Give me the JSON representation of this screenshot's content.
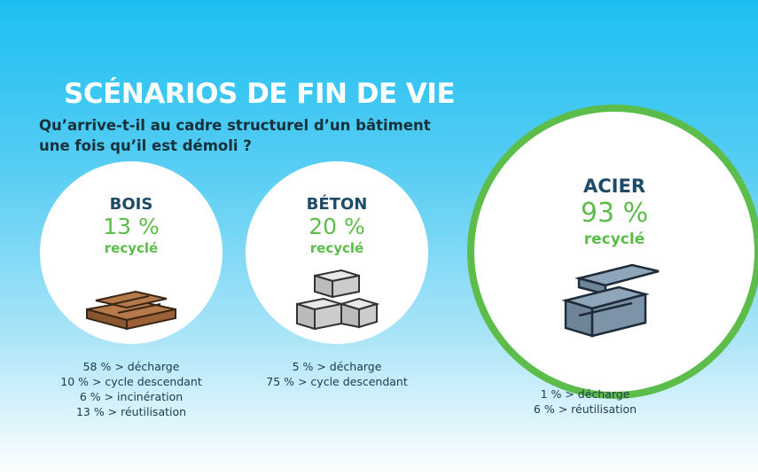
{
  "title": "SCÉNARIOS DE FIN DE VIE",
  "subtitle": "Qu’arrive-t-il au cadre structurel d’un bâtiment une fois qu’il est démoli ?",
  "materials": [
    {
      "name": "BOIS",
      "percent": "13 %",
      "recycled_label": "recyclé",
      "icon": "wood-planks-icon",
      "details": [
        "58 % > décharge",
        "10 % > cycle descendant",
        "6 % > incinération",
        "13 % > réutilisation"
      ]
    },
    {
      "name": "BÉTON",
      "percent": "20 %",
      "recycled_label": "recyclé",
      "icon": "concrete-blocks-icon",
      "details": [
        "5 % > décharge",
        "75 % > cycle descendant"
      ]
    },
    {
      "name": "ACIER",
      "percent": "93 %",
      "recycled_label": "recyclé",
      "icon": "steel-beams-icon",
      "details": [
        "1 % > décharge",
        "6 % > réutilisation"
      ]
    }
  ],
  "colors": {
    "accent_green": "#5cbd4a",
    "heading_blue": "#1d4a66",
    "sky_blue": "#1cbff2"
  }
}
